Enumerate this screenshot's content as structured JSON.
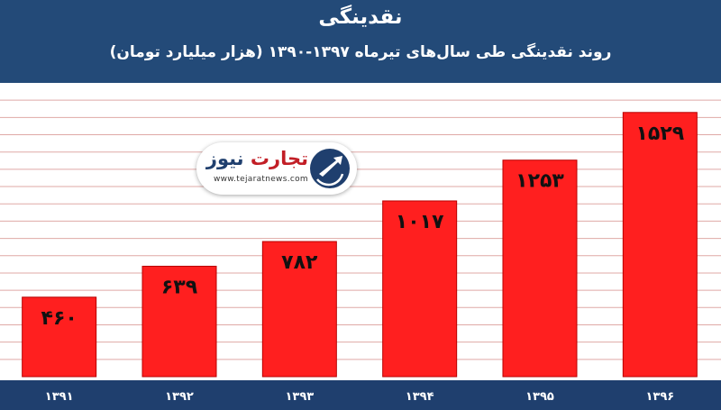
{
  "chart_data": {
    "type": "bar",
    "title": "نقدینگی",
    "subtitle": "روند نقدینگی طی سال‌های تیرماه ۱۳۹۷-۱۳۹۰ (هزار میلیارد تومان)",
    "categories": [
      "۱۳۹۱",
      "۱۳۹۲",
      "۱۳۹۳",
      "۱۳۹۴",
      "۱۳۹۵",
      "۱۳۹۶"
    ],
    "values": [
      460,
      639,
      782,
      1017,
      1253,
      1529
    ],
    "value_labels": [
      "۴۶۰",
      "۶۳۹",
      "۷۸۲",
      "۱۰۱۷",
      "۱۲۵۳",
      "۱۵۲۹"
    ],
    "ylim": [
      0,
      1700
    ],
    "grid": true,
    "colors": {
      "bar": "#ff1f1f",
      "bar_edge": "#b80000",
      "header": "#234a78",
      "axis_band": "#1f3f6e",
      "grid": "#dfa9a6"
    }
  },
  "watermark": {
    "name_part1": "تجارت",
    "name_part2": "نیوز",
    "url": "www.tejaratnews.com",
    "icon": "arrow-globe-logo-icon"
  }
}
